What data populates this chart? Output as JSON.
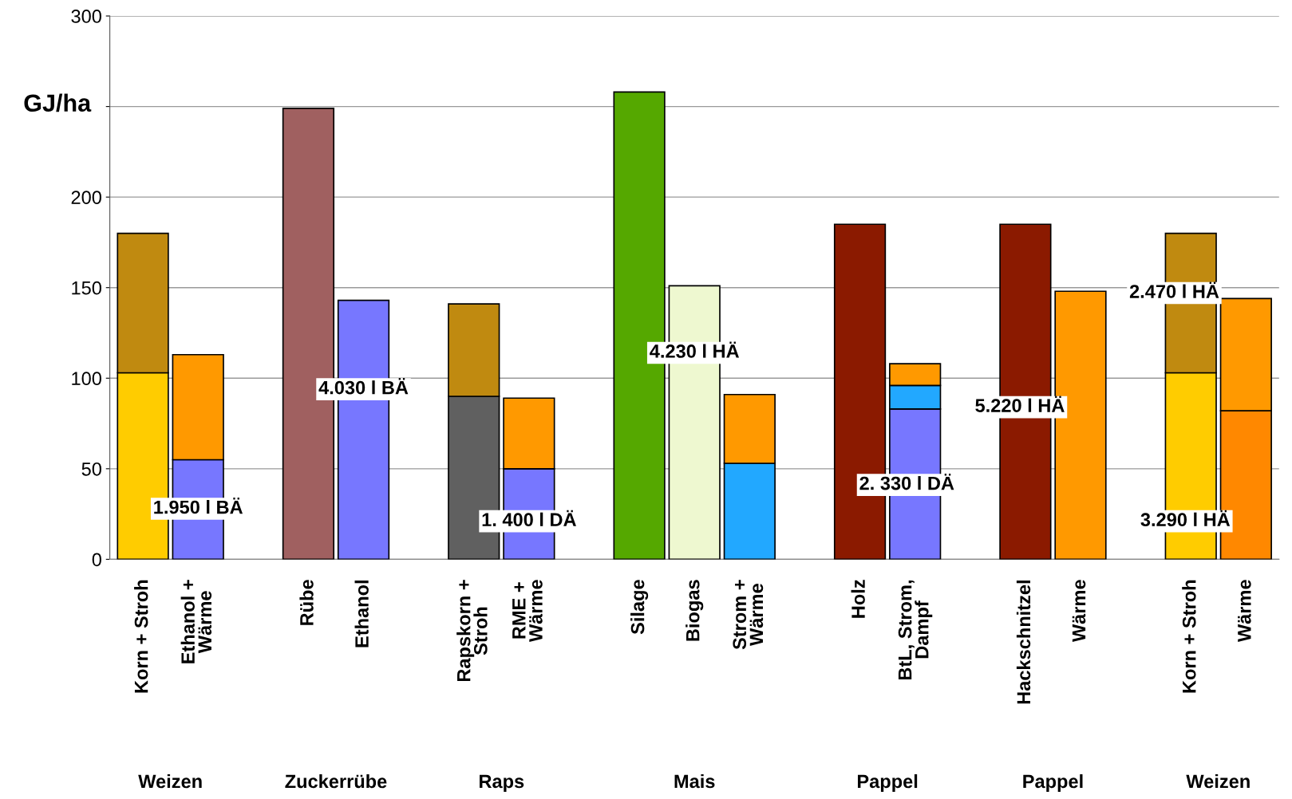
{
  "chart_data": {
    "type": "bar",
    "stacked": true,
    "ylabel": "GJ/ha",
    "ylim": [
      0,
      300
    ],
    "yticks": [
      0,
      50,
      100,
      150,
      200,
      {
        "value": 250,
        "label": null
      },
      300
    ],
    "grid": "y",
    "categories": [
      "Korn + Stroh",
      "Ethanol +\nWärme",
      null,
      "Rübe",
      "Ethanol",
      null,
      "Rapskorn +\nStroh",
      "RME +\nWärme",
      null,
      "Silage",
      "Biogas",
      "Strom +\nWärme",
      null,
      "Holz",
      "BtL, Strom,\nDampf",
      null,
      "Hackschnitzel",
      "Wärme",
      null,
      "Korn + Stroh",
      "Wärme"
    ],
    "series": [
      {
        "values": [
          103,
          55,
          null,
          249,
          143,
          null,
          90,
          50,
          null,
          258,
          151,
          53,
          null,
          185,
          83,
          null,
          185,
          148,
          null,
          103,
          82
        ],
        "colors": [
          "#ffcc00",
          "#7777ff",
          null,
          "#a06060",
          "#7777ff",
          null,
          "#606060",
          "#7777ff",
          null,
          "#55a800",
          "#eef8d0",
          "#22a8ff",
          null,
          "#8b1a00",
          "#7777ff",
          null,
          "#8b1a00",
          "#ff9900",
          null,
          "#ffcc00",
          "#ff8800"
        ]
      },
      {
        "values": [
          null,
          null,
          null,
          null,
          null,
          null,
          null,
          null,
          null,
          null,
          null,
          null,
          null,
          null,
          13,
          null,
          null,
          null,
          null,
          null,
          null
        ],
        "colors": [
          null,
          null,
          null,
          null,
          null,
          null,
          null,
          null,
          null,
          null,
          null,
          null,
          null,
          null,
          "#22a8ff",
          null,
          null,
          null,
          null,
          null,
          null
        ]
      },
      {
        "values": [
          77,
          58,
          null,
          null,
          null,
          null,
          51,
          39,
          null,
          null,
          null,
          38,
          null,
          null,
          12,
          null,
          null,
          null,
          null,
          77,
          62
        ],
        "colors": [
          "#c08a10",
          "#ff9900",
          null,
          null,
          null,
          null,
          "#c08a10",
          "#ff9900",
          null,
          null,
          null,
          "#ff9900",
          null,
          null,
          "#ff9900",
          null,
          null,
          null,
          null,
          "#c08a10",
          "#ff9900"
        ]
      }
    ],
    "annotations": [
      "Weizen",
      "Zuckerrübe",
      "Raps",
      "Mais",
      "Pappel",
      "Pappel",
      "Weizen",
      "1.950 l BÄ",
      "4.030 l BÄ",
      "1. 400 l DÄ",
      "4.230 l HÄ",
      "2. 330 l DÄ",
      "5.220 l HÄ",
      "2.470 l HÄ",
      "3.290 l HÄ"
    ]
  }
}
